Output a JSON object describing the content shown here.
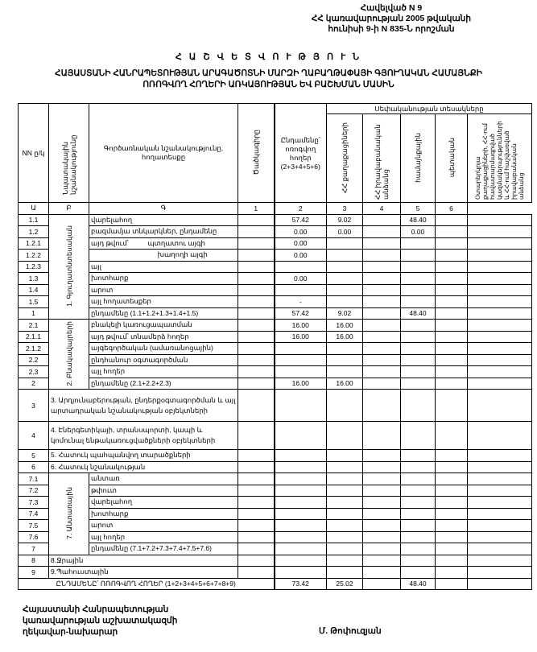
{
  "appendix": {
    "line1": "Հավելված N 9",
    "line2": "ՀՀ կառավարության 2005 թվականի",
    "line3": "հունիսի 9-ի N 835-Ն որոշման"
  },
  "title": "Հ Ա Շ Վ Ե Տ Վ Ո Ւ Թ Յ Ո Ւ Ն",
  "subtitle": {
    "line1": "ՀԱՅԱՍՏԱՆԻ ՀԱՆՐԱՊԵՏՈՒԹՅԱՆ ԱՐԱԳԱԾՈՏՆԻ ՄԱՐԶԻ ՂԱԲԱՂԹԱՓԱՅԻ ԳՅՈՒՂԱԿԱՆ ՀԱՄԱՅՆՔԻ",
    "line2": "ՈՌՈԳՎՈՂ ՀՈՂԵՐԻ ԱՌԿԱՅՈՒԹՅԱՆ ԵՎ ԲԱՇԽՄԱՆ ՄԱՍԻՆ"
  },
  "table": {
    "headers": {
      "nn": "NN ը/կ",
      "purpose": "Նպատակային նշանակությունը",
      "function": "Գործառնական նշանակությունը, հողատեսքը",
      "code": "Ծածկագիրը",
      "total": "Ընդամենը՝ ոռոգվող հողեր (2+3+4+5+6)",
      "ownership": "Սեփականության տեսակները",
      "col2": "ՀՀ քաղաքացիների",
      "col3": "ՀՀ իրավաբանական անձանց",
      "col4": "համայնքային",
      "col5": "պետական",
      "col6": "Օտարերկրյա քաղաքացիների, ՀՀ-ում հավատարմագրված կազմակերպությունների և ՀՀ-ում հաշվառված իրավաբանական անձանց"
    },
    "index_row": [
      "Ա",
      "Բ",
      "Գ",
      "1",
      "2",
      "3",
      "4",
      "5",
      "6"
    ],
    "groups": {
      "g1": "1. Գյուղատնտեսական",
      "g2": "2. Բնակավայրերի",
      "g7": "7. Անտառային"
    },
    "rows": [
      {
        "nn": "1.1",
        "desc": "վարելահող",
        "vals": [
          "57.42",
          "9.02",
          "",
          "48.40",
          "",
          ""
        ],
        "group": "g1",
        "span": 9
      },
      {
        "nn": "1.2",
        "desc": "բազմամյա տնկարկներ, ընդամենը",
        "vals": [
          "0.00",
          "0.00",
          "",
          "0.00",
          "",
          ""
        ]
      },
      {
        "nn": "1.2.1",
        "desc": "այդ թվում՝          պտղատու այգի",
        "vals": [
          "0.00",
          "",
          "",
          "",
          "",
          ""
        ]
      },
      {
        "nn": "1.2.2",
        "desc": "                                   խաղողի այգի",
        "vals": [
          "0.00",
          "",
          "",
          "",
          "",
          ""
        ]
      },
      {
        "nn": "1.2.3",
        "desc": "այլ",
        "vals": [
          "",
          "",
          "",
          "",
          "",
          ""
        ]
      },
      {
        "nn": "1.3",
        "desc": "խոտհարք",
        "vals": [
          "0.00",
          "",
          "",
          "",
          "",
          ""
        ]
      },
      {
        "nn": "1.4",
        "desc": "արոտ",
        "vals": [
          "",
          "",
          "",
          "",
          "",
          ""
        ]
      },
      {
        "nn": "1.5",
        "desc": "այլ հողատեսքեր",
        "vals": [
          "-",
          "",
          "",
          "",
          "",
          ""
        ]
      },
      {
        "nn": "1",
        "desc": "ընդամենը (1.1+1.2+1.3+1.4+1.5)",
        "vals": [
          "57.42",
          "9.02",
          "",
          "48.40",
          "",
          ""
        ]
      },
      {
        "nn": "2.1",
        "desc": "բնակելի կառուցապատման",
        "vals": [
          "16.00",
          "16.00",
          "",
          "",
          "",
          ""
        ],
        "group": "g2",
        "span": 6
      },
      {
        "nn": "2.1.1",
        "desc": "այդ թվում՝ տնամերձ հողեր",
        "vals": [
          "16.00",
          "16.00",
          "",
          "",
          "",
          ""
        ]
      },
      {
        "nn": "2.1.2",
        "desc": "այգեգործական (ամառանոցային)",
        "vals": [
          "",
          "",
          "",
          "",
          "",
          ""
        ]
      },
      {
        "nn": "2.2",
        "desc": "ընդհանուր օգտագործման",
        "vals": [
          "",
          "",
          "",
          "",
          "",
          ""
        ]
      },
      {
        "nn": "2.3",
        "desc": "այլ հողեր",
        "vals": [
          "",
          "",
          "",
          "",
          "",
          ""
        ]
      },
      {
        "nn": "2",
        "desc": "ընդամենը (2.1+2.2+2.3)",
        "vals": [
          "16.00",
          "16.00",
          "",
          "",
          "",
          ""
        ]
      },
      {
        "nn": "3",
        "desc": "3. Արդյունաբերության, ընդերքօգտագործման և այլ արտադրական նշանակության օբյեկտների",
        "vals": [
          "",
          "",
          "",
          "",
          "",
          ""
        ],
        "full": true,
        "h": 40
      },
      {
        "nn": "4",
        "desc": "4. Էներգետիկայի, տրանսպորտի, կապի և կոմունալ ենթակառուցվածքների օբյեկտների",
        "vals": [
          "",
          "",
          "",
          "",
          "",
          ""
        ],
        "full": true,
        "h": 35
      },
      {
        "nn": "5",
        "desc": "5. Հատուկ պահպանվող տարածքների",
        "vals": [
          "",
          "",
          "",
          "",
          "",
          ""
        ],
        "full": true
      },
      {
        "nn": "6",
        "desc": "6. Հատուկ նշանակության",
        "vals": [
          "",
          "",
          "",
          "",
          "",
          ""
        ],
        "full": true
      },
      {
        "nn": "7.1",
        "desc": "անտառ",
        "vals": [
          "",
          "",
          "",
          "",
          "",
          ""
        ],
        "group": "g7",
        "span": 7
      },
      {
        "nn": "7.2",
        "desc": "թփուտ",
        "vals": [
          "",
          "",
          "",
          "",
          "",
          ""
        ]
      },
      {
        "nn": "7.3",
        "desc": "վարելահող",
        "vals": [
          "",
          "",
          "",
          "",
          "",
          ""
        ]
      },
      {
        "nn": "7.4",
        "desc": "խոտհարք",
        "vals": [
          "",
          "",
          "",
          "",
          "",
          ""
        ]
      },
      {
        "nn": "7.5",
        "desc": "արոտ",
        "vals": [
          "",
          "",
          "",
          "",
          "",
          ""
        ]
      },
      {
        "nn": "7.6",
        "desc": "այլ հողեր",
        "vals": [
          "",
          "",
          "",
          "",
          "",
          ""
        ]
      },
      {
        "nn": "7",
        "desc": "ընդամենը (7.1+7.2+7.3+7.4+7.5+7.6)",
        "vals": [
          "",
          "",
          "",
          "",
          "",
          ""
        ]
      },
      {
        "nn": "8",
        "desc": "8.Ջրային",
        "vals": [
          "",
          "",
          "",
          "",
          "",
          ""
        ],
        "full": true
      },
      {
        "nn": "9",
        "desc": "9.Պահուստային",
        "vals": [
          "",
          "",
          "",
          "",
          "",
          ""
        ],
        "full": true
      }
    ],
    "total_row": {
      "label": "ԸՆԴԱՄԵՆԸ՝ ՈՌՈԳՎՈՂ ՀՈՂԵՐ (1+2+3+4+5+6+7+8+9)",
      "vals": [
        "73.42",
        "25.02",
        "",
        "48.40",
        "",
        ""
      ]
    }
  },
  "footer": {
    "line1": "Հայաստանի Հանրապետության",
    "line2": "կառավարության աշխատակազմի",
    "line3": "ղեկավար-նախարար",
    "signature": "Մ. Թոփուզյան"
  }
}
